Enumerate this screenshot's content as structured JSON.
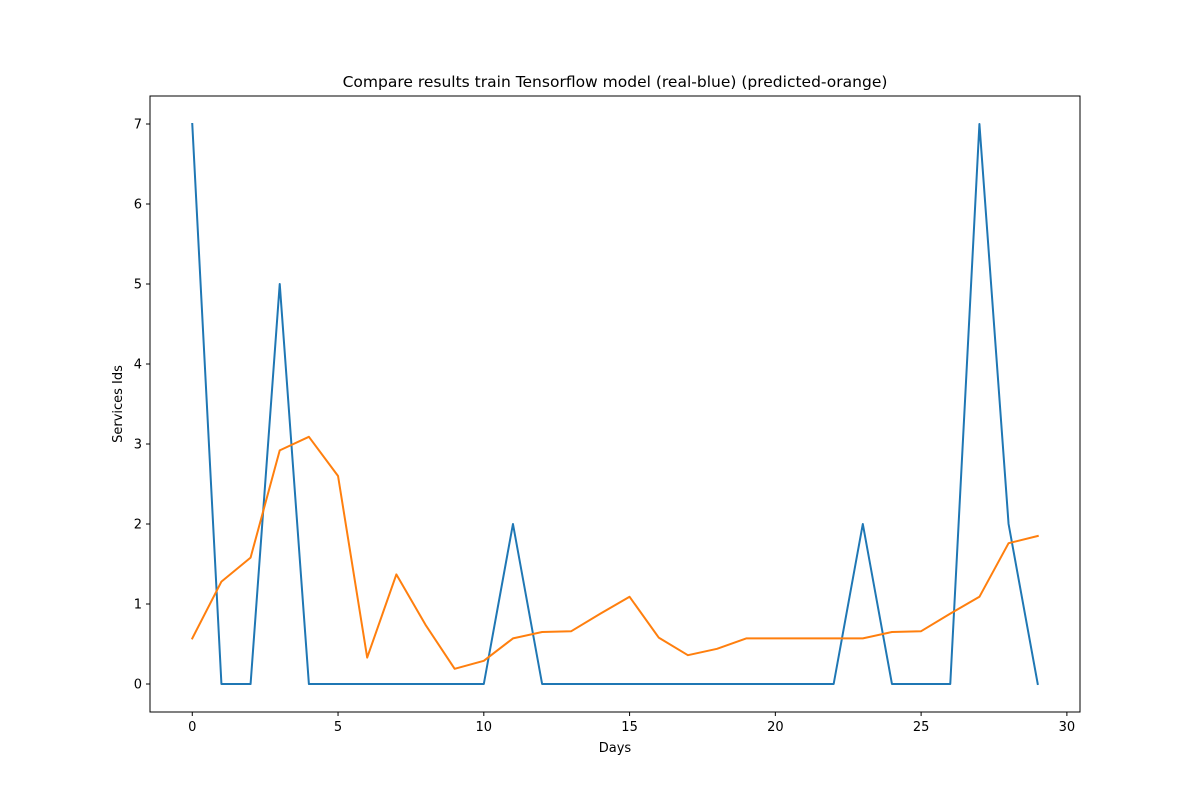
{
  "chart_data": {
    "type": "line",
    "title": "Compare results train Tensorflow model (real-blue) (predicted-orange)",
    "xlabel": "Days",
    "ylabel": "Services Ids",
    "xlim": [
      -1.45,
      30.45
    ],
    "ylim": [
      -0.35,
      7.35
    ],
    "xticks": [
      0,
      5,
      10,
      15,
      20,
      25,
      30
    ],
    "yticks": [
      0,
      1,
      2,
      3,
      4,
      5,
      6,
      7
    ],
    "grid": false,
    "x": [
      0,
      1,
      2,
      3,
      4,
      5,
      6,
      7,
      8,
      9,
      10,
      11,
      12,
      13,
      14,
      15,
      16,
      17,
      18,
      19,
      20,
      21,
      22,
      23,
      24,
      25,
      26,
      27,
      28,
      29
    ],
    "series": [
      {
        "color": "#1f77b4",
        "values": [
          7,
          0,
          0,
          5,
          0,
          0,
          0,
          0,
          0,
          0,
          0,
          2,
          0,
          0,
          0,
          0,
          0,
          0,
          0,
          0,
          0,
          0,
          0,
          2,
          0,
          0,
          0,
          7,
          2,
          0
        ]
      },
      {
        "color": "#ff7f0e",
        "values": [
          0.57,
          1.28,
          1.58,
          2.92,
          3.09,
          2.6,
          0.33,
          1.37,
          0.74,
          0.19,
          0.29,
          0.57,
          0.65,
          0.66,
          0.88,
          1.09,
          0.58,
          0.36,
          0.44,
          0.57,
          0.57,
          0.57,
          0.57,
          0.57,
          0.65,
          0.66,
          0.88,
          1.09,
          1.76,
          1.85
        ]
      }
    ]
  }
}
